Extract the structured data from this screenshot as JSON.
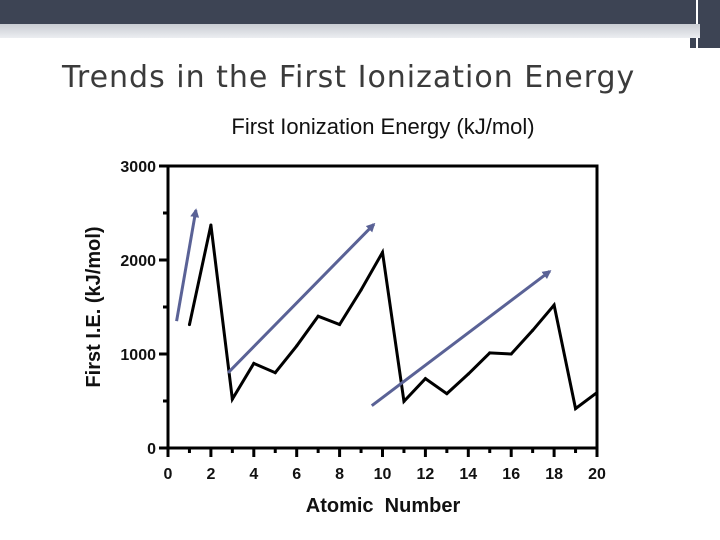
{
  "slide": {
    "title": "Trends in the First Ionization Energy"
  },
  "colors": {
    "header_bar": "#3d4454",
    "data_line": "#000000",
    "arrow": "#5a6296"
  },
  "chart_data": {
    "type": "line",
    "title": "First Ionization Energy (kJ/mol)",
    "xlabel": "Atomic  Number",
    "ylabel": "First I.E. (kJ/mol)",
    "xlim": [
      0,
      20
    ],
    "ylim": [
      0,
      3000
    ],
    "x_ticks": [
      0,
      2,
      4,
      6,
      8,
      10,
      12,
      14,
      16,
      18,
      20
    ],
    "y_ticks": [
      0,
      1000,
      2000,
      3000
    ],
    "grid": false,
    "legend": "none",
    "series": [
      {
        "x": [
          1,
          2,
          3,
          4,
          5,
          6,
          7,
          8,
          9,
          10,
          11,
          12,
          13,
          14,
          15,
          16,
          17,
          18,
          19,
          20
        ],
        "y": [
          1312,
          2372,
          520,
          900,
          801,
          1086,
          1402,
          1314,
          1681,
          2081,
          496,
          738,
          578,
          787,
          1012,
          1000,
          1251,
          1521,
          419,
          590
        ]
      }
    ],
    "annotations": [
      {
        "type": "arrow",
        "from": [
          0.4,
          1350
        ],
        "to": [
          1.3,
          2530
        ]
      },
      {
        "type": "arrow",
        "from": [
          2.8,
          800
        ],
        "to": [
          9.6,
          2380
        ]
      },
      {
        "type": "arrow",
        "from": [
          9.5,
          450
        ],
        "to": [
          17.8,
          1880
        ]
      }
    ]
  }
}
